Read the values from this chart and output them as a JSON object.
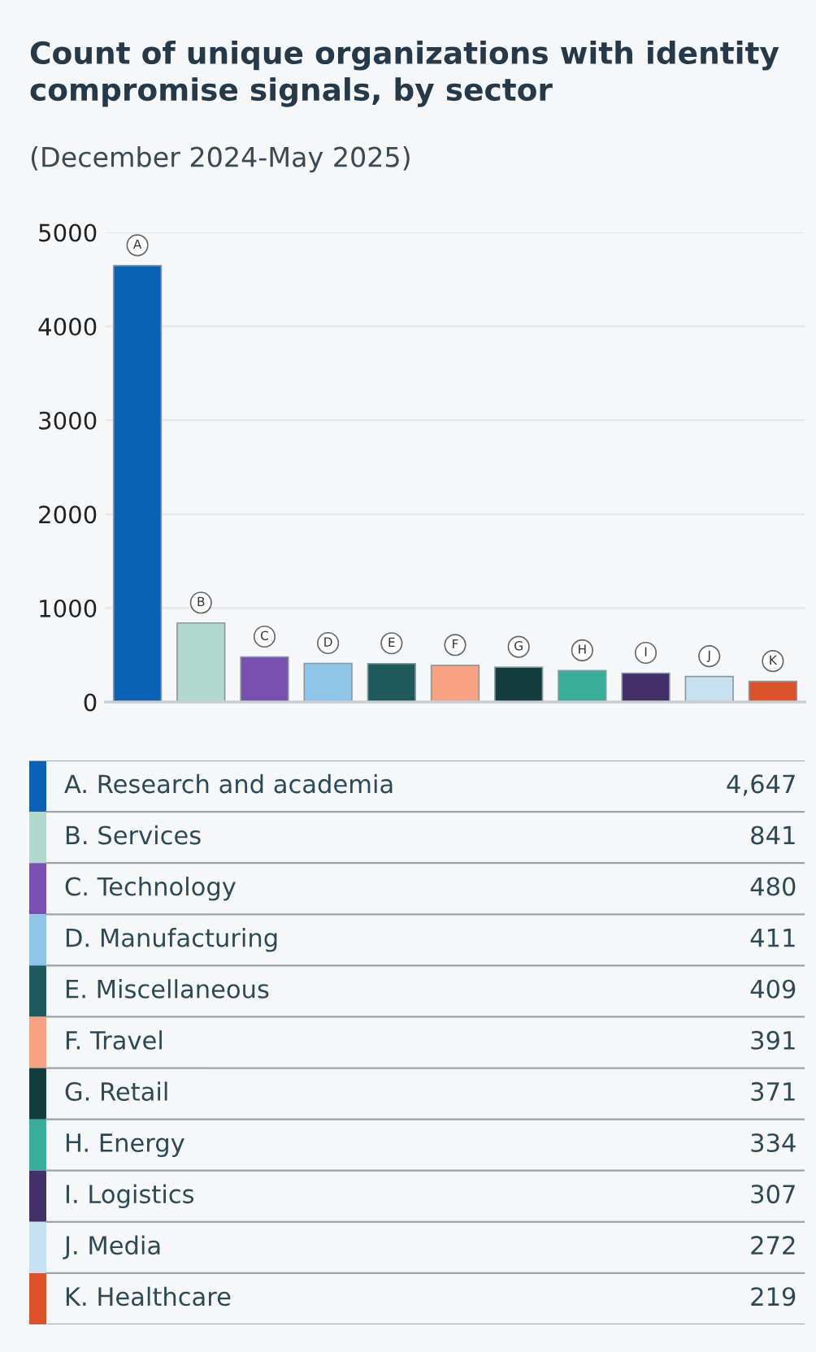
{
  "chart_data": [
    {
      "type": "bar",
      "title": "Count of unique organizations with identity compromise signals, by sector",
      "subtitle": "(December 2024-May 2025)",
      "categories": [
        null,
        null,
        null,
        null,
        null,
        null,
        null,
        null,
        null,
        null,
        null
      ],
      "values": [
        4647,
        841,
        480,
        411,
        409,
        391,
        371,
        334,
        307,
        272,
        219
      ],
      "colors": [
        "#0b62b5",
        "#b3d8cd",
        "#7a4fb2",
        "#90c5ea",
        "#1e5a5c",
        "#f9a183",
        "#123c3e",
        "#39ac9a",
        "#43306a",
        "#c6e2f2",
        "#dc532b"
      ],
      "annotations": [
        "A",
        "B",
        "C",
        "D",
        "E",
        "F",
        "G",
        "H",
        "I",
        "J",
        "K"
      ],
      "ylim": [
        0,
        5000
      ],
      "yticks": [
        0,
        1000,
        2000,
        3000,
        4000,
        5000
      ],
      "grid": "y",
      "tick_labels": "y"
    },
    {
      "type": "other",
      "annotations": [
        "A. Research and academia",
        "4,647",
        "B. Services",
        "841",
        "C. Technology",
        "480",
        "D. Manufacturing",
        "411",
        "E. Miscellaneous",
        "409",
        "F. Travel",
        "391",
        "G. Retail",
        "371",
        "H. Energy",
        "334",
        "I. Logistics",
        "307",
        "J. Media",
        "272",
        "K. Healthcare",
        "219"
      ]
    }
  ]
}
